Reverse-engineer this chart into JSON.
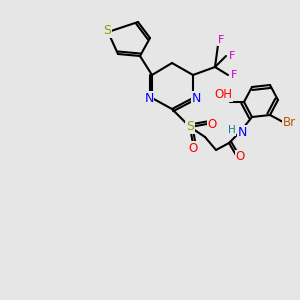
{
  "bg_color": "#e6e6e6",
  "bond_color": "#000000",
  "colors": {
    "S": "#999900",
    "N": "#0000ff",
    "O": "#ff0000",
    "F": "#cc00cc",
    "Br": "#bb5500",
    "H": "#008888",
    "C": "#000000"
  },
  "bond_lw": 1.5,
  "font_size": 8.5
}
